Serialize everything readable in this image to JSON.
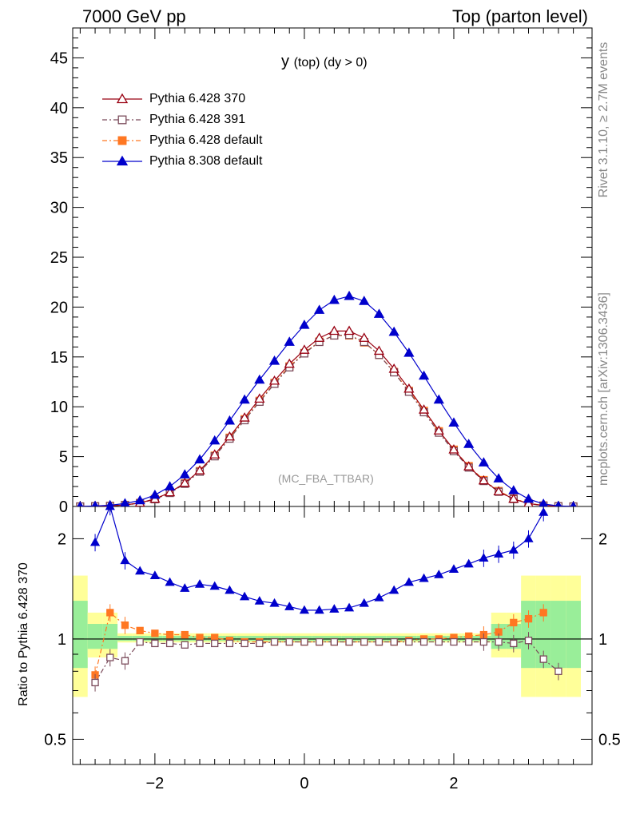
{
  "header": {
    "left": "7000 GeV pp",
    "right": "Top (parton level)"
  },
  "side": {
    "rivet": "Rivet 3.1.10, ≥ 2.7M events",
    "mcplots": "mcplots.cern.ch [arXiv:1306.3436]"
  },
  "chart_data": {
    "type": "line",
    "title_main": "y",
    "title_sub": "(top) (dy > 0)",
    "watermark": "(MC_FBA_TTBAR)",
    "ratio_ylabel": "Ratio to Pythia 6.428 370",
    "xlim": [
      -3.1,
      3.85
    ],
    "ylim": [
      0,
      48
    ],
    "ratio_ylim": [
      0.42,
      2.5
    ],
    "x_ticks": [
      -2,
      0,
      2
    ],
    "x_tick_labels": [
      "−2",
      "0",
      "2"
    ],
    "y_ticks": [
      0,
      5,
      10,
      15,
      20,
      25,
      30,
      35,
      40,
      45
    ],
    "ratio_ticks": [
      0.5,
      1,
      2
    ],
    "legend_position": "top-left",
    "x": [
      -3.0,
      -2.8,
      -2.6,
      -2.4,
      -2.2,
      -2.0,
      -1.8,
      -1.6,
      -1.4,
      -1.2,
      -1.0,
      -0.8,
      -0.6,
      -0.4,
      -0.2,
      0.0,
      0.2,
      0.4,
      0.6,
      0.8,
      1.0,
      1.2,
      1.4,
      1.6,
      1.8,
      2.0,
      2.2,
      2.4,
      2.6,
      2.8,
      3.0,
      3.2,
      3.4,
      3.6
    ],
    "series": [
      {
        "name": "Pythia 6.428 370",
        "color": "#990011",
        "marker": "open-triangle",
        "values": [
          0.0,
          0.02,
          0.06,
          0.15,
          0.35,
          0.75,
          1.4,
          2.35,
          3.6,
          5.2,
          7.0,
          8.9,
          10.8,
          12.6,
          14.3,
          15.7,
          16.9,
          17.6,
          17.6,
          16.9,
          15.6,
          13.8,
          11.8,
          9.7,
          7.6,
          5.7,
          4.0,
          2.6,
          1.5,
          0.75,
          0.3,
          0.09,
          0.02,
          0.0
        ],
        "ratio": [
          null,
          0.74,
          0.92,
          0.88,
          1.0,
          1.0,
          1.0,
          1.0,
          1.0,
          1.0,
          1.0,
          1.0,
          1.0,
          1.0,
          1.0,
          1.0,
          1.0,
          1.0,
          1.0,
          1.0,
          1.0,
          1.0,
          1.0,
          1.0,
          1.0,
          1.0,
          1.0,
          1.0,
          1.0,
          1.0,
          1.0,
          0.88,
          0.79,
          null
        ]
      },
      {
        "name": "Pythia 6.428 391",
        "color": "#7a4a5a",
        "marker": "open-square",
        "values": [
          0.0,
          0.02,
          0.05,
          0.14,
          0.33,
          0.72,
          1.35,
          2.27,
          3.48,
          5.03,
          6.8,
          8.65,
          10.5,
          12.3,
          13.95,
          15.35,
          16.5,
          17.15,
          17.2,
          16.5,
          15.2,
          13.45,
          11.5,
          9.45,
          7.4,
          5.55,
          3.9,
          2.55,
          1.47,
          0.74,
          0.3,
          0.09,
          0.02,
          0.0
        ],
        "ratio": [
          null,
          0.74,
          0.88,
          0.86,
          0.98,
          0.97,
          0.97,
          0.96,
          0.97,
          0.97,
          0.97,
          0.97,
          0.97,
          0.98,
          0.98,
          0.98,
          0.98,
          0.98,
          0.98,
          0.98,
          0.98,
          0.98,
          0.98,
          0.98,
          0.98,
          0.98,
          0.98,
          0.98,
          0.98,
          0.97,
          0.99,
          0.87,
          0.8,
          null
        ]
      },
      {
        "name": "Pythia 6.428 default",
        "color": "#ff7722",
        "marker": "filled-square",
        "values": [
          0.0,
          0.02,
          0.06,
          0.16,
          0.36,
          0.76,
          1.42,
          2.33,
          3.55,
          5.1,
          6.9,
          8.75,
          10.6,
          12.4,
          14.05,
          15.4,
          16.55,
          17.15,
          17.15,
          16.45,
          15.2,
          13.5,
          11.6,
          9.6,
          7.55,
          5.7,
          4.05,
          2.65,
          1.55,
          0.8,
          0.33,
          0.1,
          0.02,
          0.0
        ],
        "ratio": [
          null,
          0.78,
          1.2,
          1.1,
          1.06,
          1.04,
          1.03,
          1.03,
          1.01,
          1.01,
          0.99,
          0.98,
          0.98,
          0.98,
          0.98,
          0.98,
          0.98,
          0.98,
          0.98,
          0.98,
          0.98,
          0.98,
          0.99,
          1.0,
          1.0,
          1.01,
          1.02,
          1.03,
          1.05,
          1.12,
          1.15,
          1.2,
          null,
          null
        ]
      },
      {
        "name": "Pythia 8.308 default",
        "color": "#0000cc",
        "marker": "filled-triangle",
        "values": [
          0.0,
          0.05,
          0.12,
          0.3,
          0.6,
          1.15,
          2.0,
          3.2,
          4.7,
          6.6,
          8.6,
          10.7,
          12.7,
          14.6,
          16.5,
          18.2,
          19.7,
          20.7,
          21.1,
          20.6,
          19.3,
          17.5,
          15.4,
          13.1,
          10.7,
          8.4,
          6.25,
          4.4,
          2.8,
          1.6,
          0.75,
          0.25,
          0.05,
          0.0
        ],
        "ratio": [
          null,
          1.95,
          2.5,
          1.72,
          1.6,
          1.55,
          1.48,
          1.42,
          1.46,
          1.44,
          1.4,
          1.34,
          1.3,
          1.28,
          1.25,
          1.22,
          1.22,
          1.23,
          1.24,
          1.28,
          1.33,
          1.4,
          1.48,
          1.52,
          1.56,
          1.62,
          1.68,
          1.75,
          1.8,
          1.85,
          2.0,
          2.4,
          null,
          null
        ]
      }
    ]
  }
}
